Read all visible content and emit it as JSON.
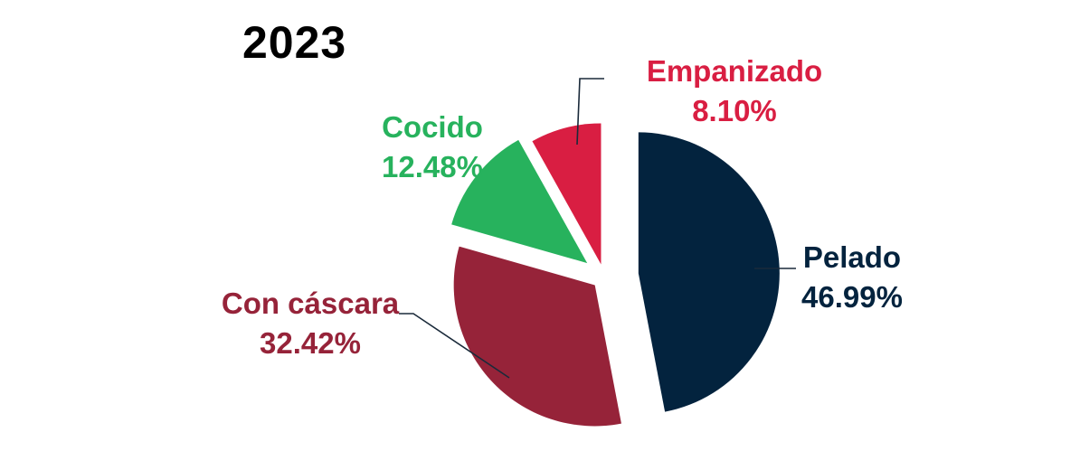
{
  "chart_data": {
    "type": "pie",
    "title": "2023",
    "exploded": true,
    "slices": [
      {
        "label": "Pelado",
        "value": 46.99,
        "value_label": "46.99%",
        "color": "#03233E"
      },
      {
        "label": "Con cáscara",
        "value": 32.42,
        "value_label": "32.42%",
        "color": "#962339"
      },
      {
        "label": "Cocido",
        "value": 12.48,
        "value_label": "12.48%",
        "color": "#27B25D"
      },
      {
        "label": "Empanizado",
        "value": 8.1,
        "value_label": "8.10%",
        "color": "#D91E42"
      }
    ]
  }
}
